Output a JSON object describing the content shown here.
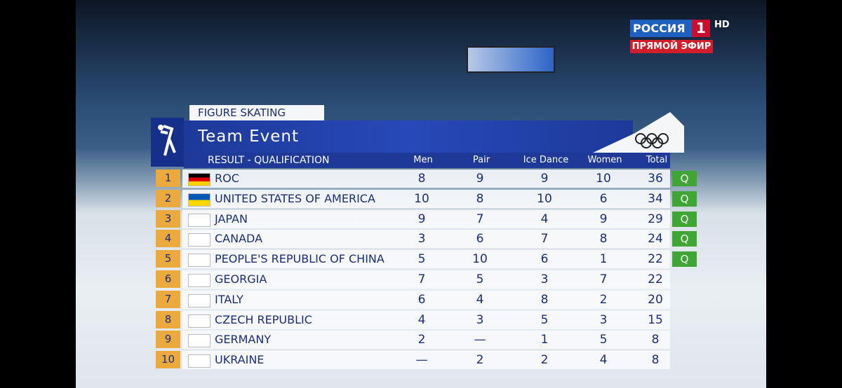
{
  "broadcaster": {
    "name": "РОССИЯ",
    "channel": "1",
    "quality": "HD",
    "status": "ПРЯМОЙ ЭФИР"
  },
  "header": {
    "sport": "FIGURE SKATING",
    "title": "Team Event",
    "subtitle": "RESULT - QUALIFICATION"
  },
  "table": {
    "columns": [
      "Men",
      "Pair",
      "Ice Dance",
      "Women",
      "Total"
    ],
    "rows": [
      {
        "rank": 1,
        "team": "ROC",
        "values": [
          8,
          9,
          9,
          10,
          36
        ],
        "status": "Q"
      },
      {
        "rank": 2,
        "team": "United States of America",
        "values": [
          10,
          8,
          10,
          6,
          34
        ],
        "status": "Q"
      },
      {
        "rank": 3,
        "team": "Japan",
        "values": [
          9,
          7,
          4,
          9,
          29
        ],
        "status": "Q"
      },
      {
        "rank": 4,
        "team": "Canada",
        "values": [
          3,
          6,
          7,
          8,
          24
        ],
        "status": "Q"
      },
      {
        "rank": 5,
        "team": "People's Republic of China",
        "values": [
          5,
          10,
          6,
          1,
          22
        ],
        "status": "Q"
      },
      {
        "rank": 6,
        "team": "Georgia",
        "values": [
          7,
          5,
          3,
          7,
          22
        ]
      },
      {
        "rank": 7,
        "team": "Italy",
        "values": [
          6,
          4,
          8,
          2,
          20
        ]
      },
      {
        "rank": 8,
        "team": "Czech Republic",
        "values": [
          4,
          3,
          5,
          3,
          15
        ]
      },
      {
        "rank": 9,
        "team": "Germany",
        "values": [
          2,
          "—",
          1,
          5,
          8
        ]
      },
      {
        "rank": 10,
        "team": "Ukraine",
        "values": [
          "—",
          2,
          2,
          4,
          8
        ]
      }
    ]
  }
}
